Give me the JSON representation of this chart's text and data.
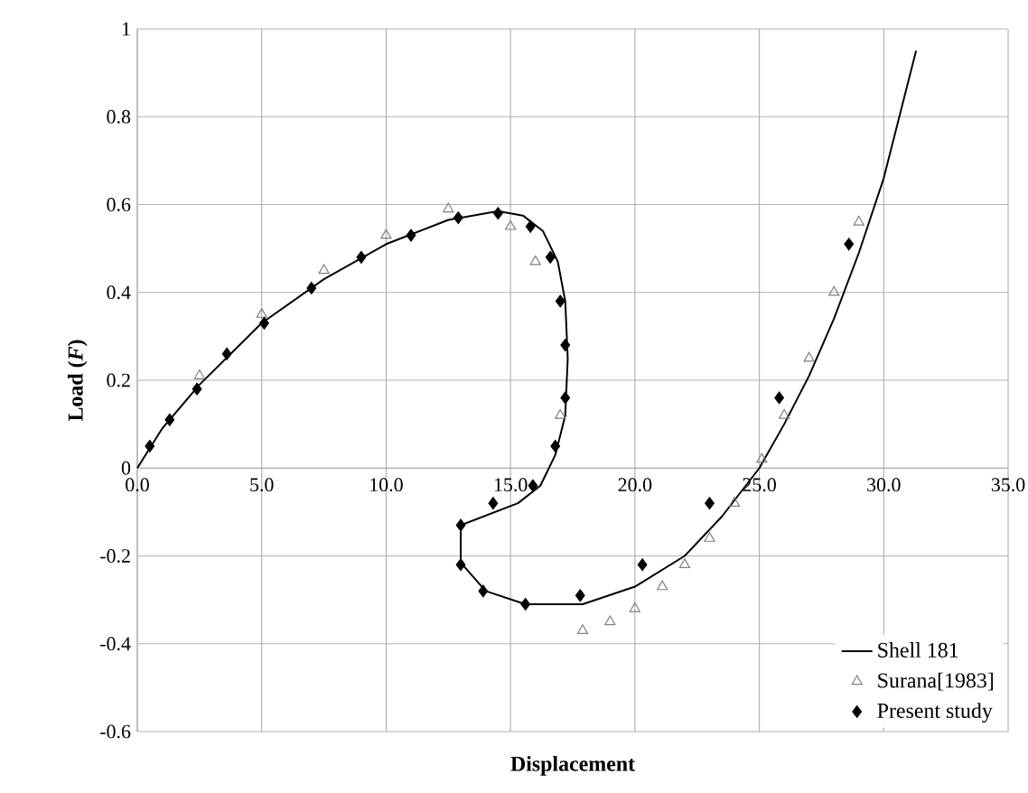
{
  "chart_data": {
    "type": "scatter",
    "xlabel": "Displacement",
    "ylabel": "Load (*F*)",
    "xlim": [
      0,
      35
    ],
    "ylim": [
      -0.6,
      1
    ],
    "xticks": [
      {
        "value": 0,
        "label": "0.0"
      },
      {
        "value": 5,
        "label": "5.0"
      },
      {
        "value": 10,
        "label": "10.0"
      },
      {
        "value": 15,
        "label": "15.0"
      },
      {
        "value": 20,
        "label": "20.0"
      },
      {
        "value": 25,
        "label": "25.0"
      },
      {
        "value": 30,
        "label": "30.0"
      },
      {
        "value": 35,
        "label": "35.0"
      }
    ],
    "yticks": [
      -0.6,
      -0.4,
      -0.2,
      0,
      0.2,
      0.4,
      0.6,
      0.8,
      1
    ],
    "grid": true,
    "legend": "bottom right",
    "series": [
      {
        "name": "Shell 181",
        "type": "line",
        "color": "#000000",
        "marker": "none",
        "line_style": "solid",
        "x": [
          0,
          1,
          2.5,
          5,
          7.5,
          10,
          12.5,
          14.5,
          15.5,
          16.3,
          16.9,
          17.2,
          17.3,
          17.2,
          16.8,
          16.2,
          15.3,
          13,
          13,
          14,
          15.6,
          17.9,
          20,
          22,
          23.5,
          25,
          26,
          27,
          28,
          29,
          30,
          31.3
        ],
        "values": [
          0,
          0.09,
          0.19,
          0.33,
          0.43,
          0.51,
          0.565,
          0.585,
          0.575,
          0.54,
          0.47,
          0.38,
          0.25,
          0.12,
          0.03,
          -0.04,
          -0.08,
          -0.13,
          -0.215,
          -0.28,
          -0.31,
          -0.31,
          -0.27,
          -0.2,
          -0.11,
          0,
          0.1,
          0.21,
          0.34,
          0.49,
          0.66,
          0.95
        ]
      },
      {
        "name": "Surana[1983]",
        "color": "#808080",
        "marker": "triangle",
        "x": [
          2.5,
          5,
          7.5,
          10,
          12.5,
          15,
          16,
          17,
          17.9,
          19,
          20,
          21.1,
          22,
          23,
          24,
          25.1,
          26,
          27,
          28,
          29
        ],
        "values": [
          0.21,
          0.35,
          0.45,
          0.53,
          0.59,
          0.55,
          0.47,
          0.12,
          -0.37,
          -0.35,
          -0.32,
          -0.27,
          -0.22,
          -0.16,
          -0.08,
          0.02,
          0.12,
          0.25,
          0.4,
          0.56
        ]
      },
      {
        "name": "Present study",
        "color": "#000000",
        "marker": "diamond",
        "x": [
          0.5,
          1.3,
          2.4,
          3.6,
          5.1,
          7,
          9,
          11,
          12.9,
          14.5,
          15.8,
          16.6,
          17,
          17.2,
          17.2,
          16.8,
          15.9,
          14.3,
          13,
          13,
          13.9,
          15.6,
          17.8,
          20.3,
          23,
          25.8,
          28.6
        ],
        "values": [
          0.05,
          0.11,
          0.18,
          0.26,
          0.33,
          0.41,
          0.48,
          0.53,
          0.57,
          0.58,
          0.55,
          0.48,
          0.38,
          0.28,
          0.16,
          0.05,
          -0.04,
          -0.08,
          -0.13,
          -0.22,
          -0.28,
          -0.31,
          -0.29,
          -0.22,
          -0.08,
          0.16,
          0.51
        ]
      }
    ]
  }
}
